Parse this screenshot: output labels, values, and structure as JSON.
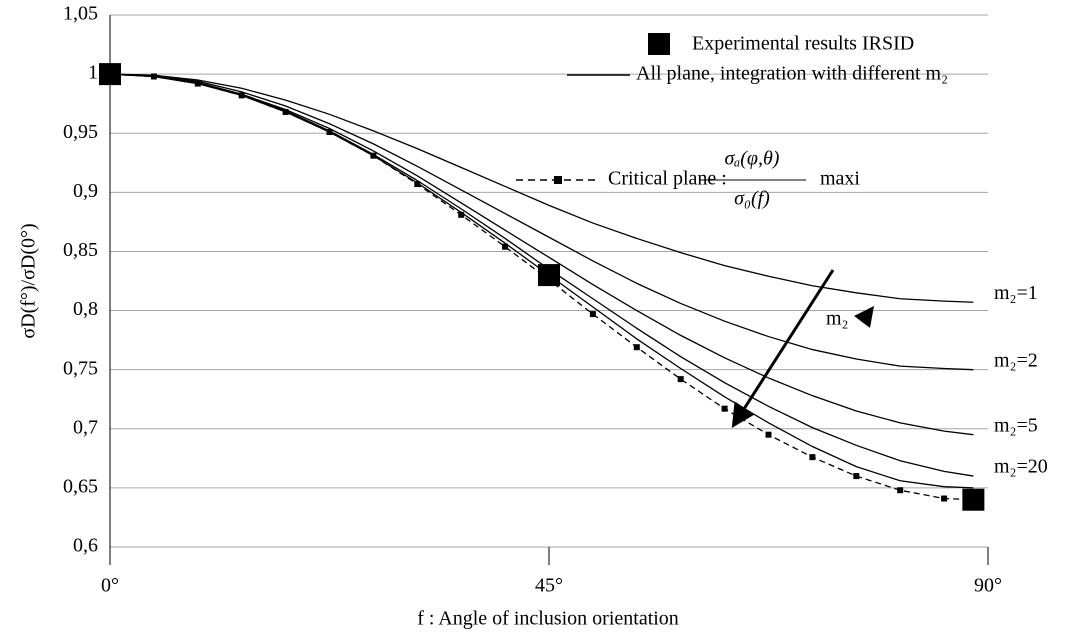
{
  "chart_data": {
    "type": "line",
    "y_label": "σD(f°)/σD(0°)",
    "x_label": "f : Angle of inclusion orientation",
    "xlim": [
      0,
      90
    ],
    "ylim": [
      0.6,
      1.05
    ],
    "xticks": [
      {
        "value": 0,
        "label": "0°"
      },
      {
        "value": 45,
        "label": "45°"
      },
      {
        "value": 90,
        "label": "90°"
      }
    ],
    "yticks": [
      {
        "value": 0.6,
        "label": "0,6"
      },
      {
        "value": 0.65,
        "label": "0,65"
      },
      {
        "value": 0.7,
        "label": "0,7"
      },
      {
        "value": 0.75,
        "label": "0,75"
      },
      {
        "value": 0.8,
        "label": "0,8"
      },
      {
        "value": 0.85,
        "label": "0,85"
      },
      {
        "value": 0.9,
        "label": "0,9"
      },
      {
        "value": 0.95,
        "label": "0,95"
      },
      1,
      {
        "value": 1.05,
        "label": "1,05"
      }
    ],
    "grid": true,
    "x": [
      0,
      4.5,
      9,
      13.5,
      18,
      22.5,
      27,
      31.5,
      36,
      40.5,
      45,
      49.5,
      54,
      58.5,
      63,
      67.5,
      72,
      76.5,
      81,
      85.5,
      88.5
    ],
    "legend": {
      "experimental": "Experimental results IRSID",
      "all_plane": "All plane, integration with different m₂",
      "critical": "Critical plane :",
      "critical_num": "σₐ(φ,θ)",
      "critical_den": "σ₀(f)",
      "critical_tail": "maxi"
    },
    "series": [
      {
        "label": "m₂=1",
        "color": "#000000",
        "style": "solid",
        "values": [
          1,
          0.999,
          0.995,
          0.988,
          0.978,
          0.966,
          0.952,
          0.937,
          0.921,
          0.905,
          0.889,
          0.874,
          0.861,
          0.849,
          0.838,
          0.829,
          0.821,
          0.815,
          0.81,
          0.808,
          0.807
        ]
      },
      {
        "label": "m₂=2",
        "color": "#000000",
        "style": "solid",
        "values": [
          1,
          0.999,
          0.994,
          0.985,
          0.973,
          0.958,
          0.941,
          0.922,
          0.902,
          0.882,
          0.862,
          0.842,
          0.823,
          0.806,
          0.791,
          0.778,
          0.767,
          0.759,
          0.753,
          0.751,
          0.75
        ]
      },
      {
        "label": "m₂=5",
        "color": "#000000",
        "style": "solid",
        "values": [
          1,
          0.998,
          0.993,
          0.983,
          0.97,
          0.954,
          0.935,
          0.914,
          0.891,
          0.868,
          0.845,
          0.822,
          0.8,
          0.779,
          0.76,
          0.743,
          0.728,
          0.715,
          0.705,
          0.698,
          0.695
        ]
      },
      {
        "label": "m₂=20",
        "color": "#000000",
        "style": "solid",
        "values": [
          1,
          0.998,
          0.992,
          0.983,
          0.969,
          0.952,
          0.932,
          0.91,
          0.886,
          0.861,
          0.835,
          0.81,
          0.785,
          0.761,
          0.739,
          0.719,
          0.701,
          0.686,
          0.673,
          0.664,
          0.66
        ]
      },
      {
        "color": "#000000",
        "style": "solid",
        "values": [
          1,
          0.998,
          0.992,
          0.982,
          0.968,
          0.951,
          0.931,
          0.908,
          0.883,
          0.857,
          0.83,
          0.803,
          0.776,
          0.751,
          0.727,
          0.705,
          0.685,
          0.668,
          0.656,
          0.651,
          0.65
        ]
      },
      {
        "color": "#000000",
        "style": "dashed",
        "markers": true,
        "values": [
          1,
          0.998,
          0.992,
          0.982,
          0.968,
          0.951,
          0.931,
          0.907,
          0.881,
          0.854,
          0.826,
          0.797,
          0.769,
          0.742,
          0.717,
          0.695,
          0.676,
          0.66,
          0.648,
          0.641,
          0.64
        ]
      }
    ],
    "experimental": {
      "color": "#000000",
      "x": [
        0,
        45,
        88.5
      ],
      "values": [
        1,
        0.83,
        0.64
      ]
    },
    "annotation": "m₂"
  }
}
